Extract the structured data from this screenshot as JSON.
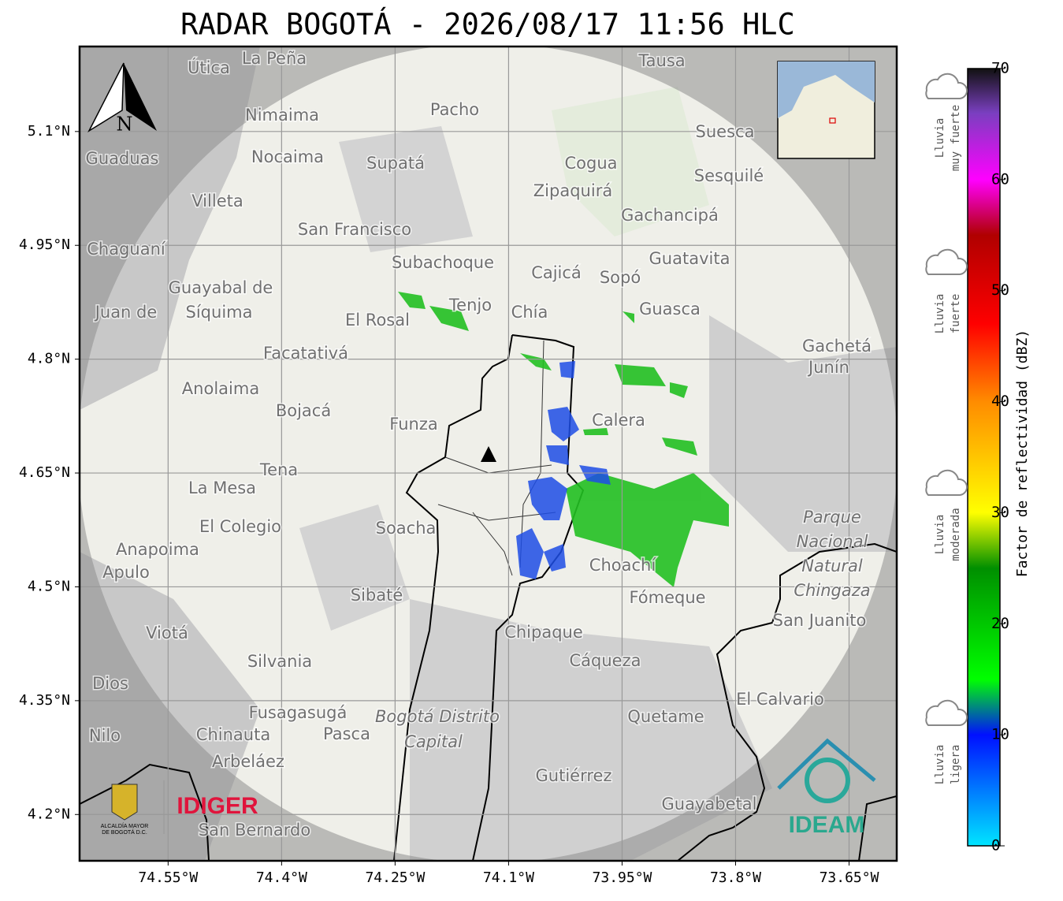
{
  "title": "RADAR BOGOTÁ - 2026/08/17 11:56 HLC",
  "map": {
    "xlim": [
      -74.667,
      -73.587
    ],
    "ylim": [
      4.139,
      5.212
    ],
    "xticks": [
      {
        "value": -74.55,
        "label": "74.55°W"
      },
      {
        "value": -74.4,
        "label": "74.4°W"
      },
      {
        "value": -74.25,
        "label": "74.25°W"
      },
      {
        "value": -74.1,
        "label": "74.1°W"
      },
      {
        "value": -73.95,
        "label": "73.95°W"
      },
      {
        "value": -73.8,
        "label": "73.8°W"
      },
      {
        "value": -73.65,
        "label": "73.65°W"
      }
    ],
    "yticks": [
      {
        "value": 5.1,
        "label": "5.1°N"
      },
      {
        "value": 4.95,
        "label": "4.95°N"
      },
      {
        "value": 4.8,
        "label": "4.8°N"
      },
      {
        "value": 4.65,
        "label": "4.65°N"
      },
      {
        "value": 4.5,
        "label": "4.5°N"
      },
      {
        "value": 4.35,
        "label": "4.35°N"
      },
      {
        "value": 4.2,
        "label": "4.2°N"
      }
    ],
    "grid": true,
    "north": "N",
    "places": [
      "La Peña",
      "Útica",
      "Tausa",
      "Pacho",
      "Nimaima",
      "Guaduas",
      "Nocaima",
      "Supatá",
      "Suesca",
      "Cogua",
      "Sesquilé",
      "Zipaquirá",
      "Villeta",
      "Gachancipá",
      "San Francisco",
      "Chaguaní",
      "Guatavita",
      "Subachoque",
      "Cajicá",
      "Sopó",
      "Guayabal de",
      "Síquima",
      "Juan de",
      "Tenjo",
      "El Rosal",
      "Chía",
      "Guasca",
      "Facatativá",
      "Gachetá",
      "Junín",
      "Anolaima",
      "Bojacá",
      "Funza",
      "Calera",
      "Tena",
      "La Mesa",
      "Soacha",
      "El Colegio",
      "Parque",
      "Nacional",
      "Natural",
      "Chingaza",
      "Anapoima",
      "Apulo",
      "Choachí",
      "Sibaté",
      "Fómeque",
      "San Juanito",
      "Viotá",
      "Chipaque",
      "Silvania",
      "Cáqueza",
      "Dios",
      "El Calvario",
      "Fusagasugá",
      "Bogotá Distrito",
      "Capital",
      "Quetame",
      "Chinauta",
      "Pasca",
      "Nilo",
      "Arbeláez",
      "Gutiérrez",
      "Guayabetal",
      "San Bernardo"
    ]
  },
  "colorbar": {
    "label": "Factor de reflectividad (dBZ)",
    "lim": [
      0,
      70
    ],
    "ticks": [
      0,
      10,
      20,
      30,
      40,
      50,
      60,
      70
    ],
    "stops": [
      {
        "value": 0,
        "color": "#00e5ff"
      },
      {
        "value": 10,
        "color": "#0010ff"
      },
      {
        "value": 15,
        "color": "#00ff00"
      },
      {
        "value": 25,
        "color": "#008f00"
      },
      {
        "value": 30,
        "color": "#ffff00"
      },
      {
        "value": 40,
        "color": "#ff8c00"
      },
      {
        "value": 47,
        "color": "#ff0000"
      },
      {
        "value": 55,
        "color": "#b00000"
      },
      {
        "value": 60,
        "color": "#ff00ff"
      },
      {
        "value": 66,
        "color": "#7a3fc0"
      },
      {
        "value": 70,
        "color": "#111111"
      }
    ],
    "categories": [
      [
        "Lluvia",
        "muy fuerte"
      ],
      [
        "Lluvia",
        "fuerte"
      ],
      [
        "Lluvia",
        "moderada"
      ],
      [
        "Lluvia",
        "ligera"
      ]
    ]
  },
  "logos": {
    "idiger": "IDIGER",
    "alcaldia": [
      "ALCALDÍA MAYOR",
      "DE BOGOTÁ D.C."
    ],
    "ideam": "IDEAM"
  }
}
